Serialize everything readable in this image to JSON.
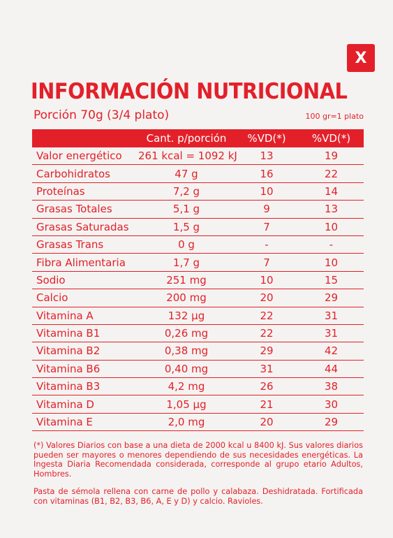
{
  "close_button": {
    "label": "X",
    "icon": "close-icon"
  },
  "title": "INFORMACIÓN NUTRICIONAL",
  "portion": "Porción 70g (3/4 plato)",
  "portion_note": "100 gr=1 plato",
  "table": {
    "headers": [
      "",
      "Cant. p/porción",
      "%VD(*)",
      "%VD(*)"
    ],
    "rows": [
      [
        "Valor energético",
        "261 kcal = 1092 kJ",
        "13",
        "19"
      ],
      [
        "Carbohidratos",
        "47 g",
        "16",
        "22"
      ],
      [
        "Proteínas",
        "7,2 g",
        "10",
        "14"
      ],
      [
        "Grasas Totales",
        "5,1 g",
        "9",
        "13"
      ],
      [
        "Grasas Saturadas",
        "1,5 g",
        "7",
        "10"
      ],
      [
        "Grasas Trans",
        "0 g",
        "-",
        "-"
      ],
      [
        "Fibra Alimentaria",
        "1,7 g",
        "7",
        "10"
      ],
      [
        "Sodio",
        "251 mg",
        "10",
        "15"
      ],
      [
        "Calcio",
        "200 mg",
        "20",
        "29"
      ],
      [
        "Vitamina A",
        "132 µg",
        "22",
        "31"
      ],
      [
        "Vitamina B1",
        "0,26 mg",
        "22",
        "31"
      ],
      [
        "Vitamina B2",
        "0,38 mg",
        "29",
        "42"
      ],
      [
        "Vitamina B6",
        "0,40 mg",
        "31",
        "44"
      ],
      [
        "Vitamina B3",
        "4,2 mg",
        "26",
        "38"
      ],
      [
        "Vitamina D",
        "1,05 µg",
        "21",
        "30"
      ],
      [
        "Vitamina E",
        "2,0 mg",
        "20",
        "29"
      ]
    ]
  },
  "footnote": "(*) Valores Diarios con base a una dieta de 2000 kcal u 8400 kJ.  Sus valores diarios pueden ser mayores o  menores dependiendo de sus necesidades energéticas. La Ingesta Diaria Recomendada  considerada, corresponde al grupo etario Adultos, Hombres.",
  "description": "Pasta de sémola rellena con carne  de pollo y calabaza. Deshidratada. Fortificada con vitaminas (B1, B2, B3, B6, A, E y D) y calcio. Ravioles.",
  "colors": {
    "accent": "#e3202a",
    "background": "#f4f3f1"
  }
}
